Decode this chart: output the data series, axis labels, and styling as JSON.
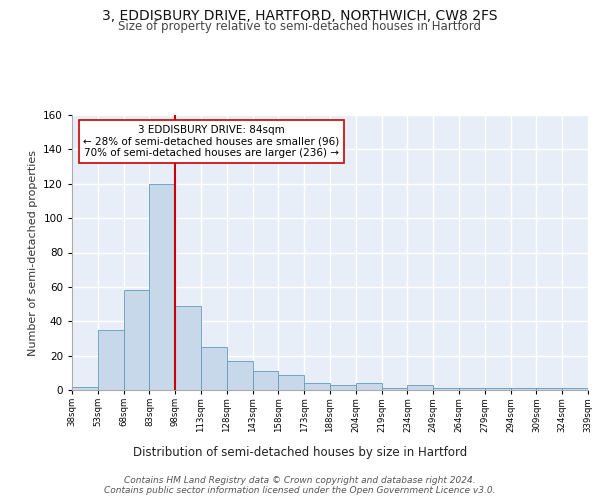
{
  "title": "3, EDDISBURY DRIVE, HARTFORD, NORTHWICH, CW8 2FS",
  "subtitle": "Size of property relative to semi-detached houses in Hartford",
  "xlabel": "Distribution of semi-detached houses by size in Hartford",
  "ylabel": "Number of semi-detached properties",
  "bar_values": [
    2,
    35,
    58,
    120,
    49,
    25,
    17,
    11,
    9,
    4,
    3,
    4,
    1,
    3,
    1,
    1,
    1,
    1,
    1,
    1
  ],
  "categories": [
    "38sqm",
    "53sqm",
    "68sqm",
    "83sqm",
    "98sqm",
    "113sqm",
    "128sqm",
    "143sqm",
    "158sqm",
    "173sqm",
    "188sqm",
    "204sqm",
    "219sqm",
    "234sqm",
    "249sqm",
    "264sqm",
    "279sqm",
    "294sqm",
    "309sqm",
    "324sqm",
    "339sqm"
  ],
  "bar_color": "#c8d8eb",
  "bar_edge_color": "#6699bb",
  "background_color": "#e8eef8",
  "grid_color": "#ffffff",
  "vline_x": 3.5,
  "vline_color": "#cc0000",
  "annotation_text": "3 EDDISBURY DRIVE: 84sqm\n← 28% of semi-detached houses are smaller (96)\n70% of semi-detached houses are larger (236) →",
  "annotation_box_color": "#ffffff",
  "annotation_box_edge": "#cc0000",
  "ylim": [
    0,
    160
  ],
  "yticks": [
    0,
    20,
    40,
    60,
    80,
    100,
    120,
    140,
    160
  ],
  "footer_text": "Contains HM Land Registry data © Crown copyright and database right 2024.\nContains public sector information licensed under the Open Government Licence v3.0.",
  "title_fontsize": 10,
  "subtitle_fontsize": 8.5,
  "xlabel_fontsize": 8.5,
  "ylabel_fontsize": 8,
  "footer_fontsize": 6.5,
  "annot_fontsize": 7.5
}
